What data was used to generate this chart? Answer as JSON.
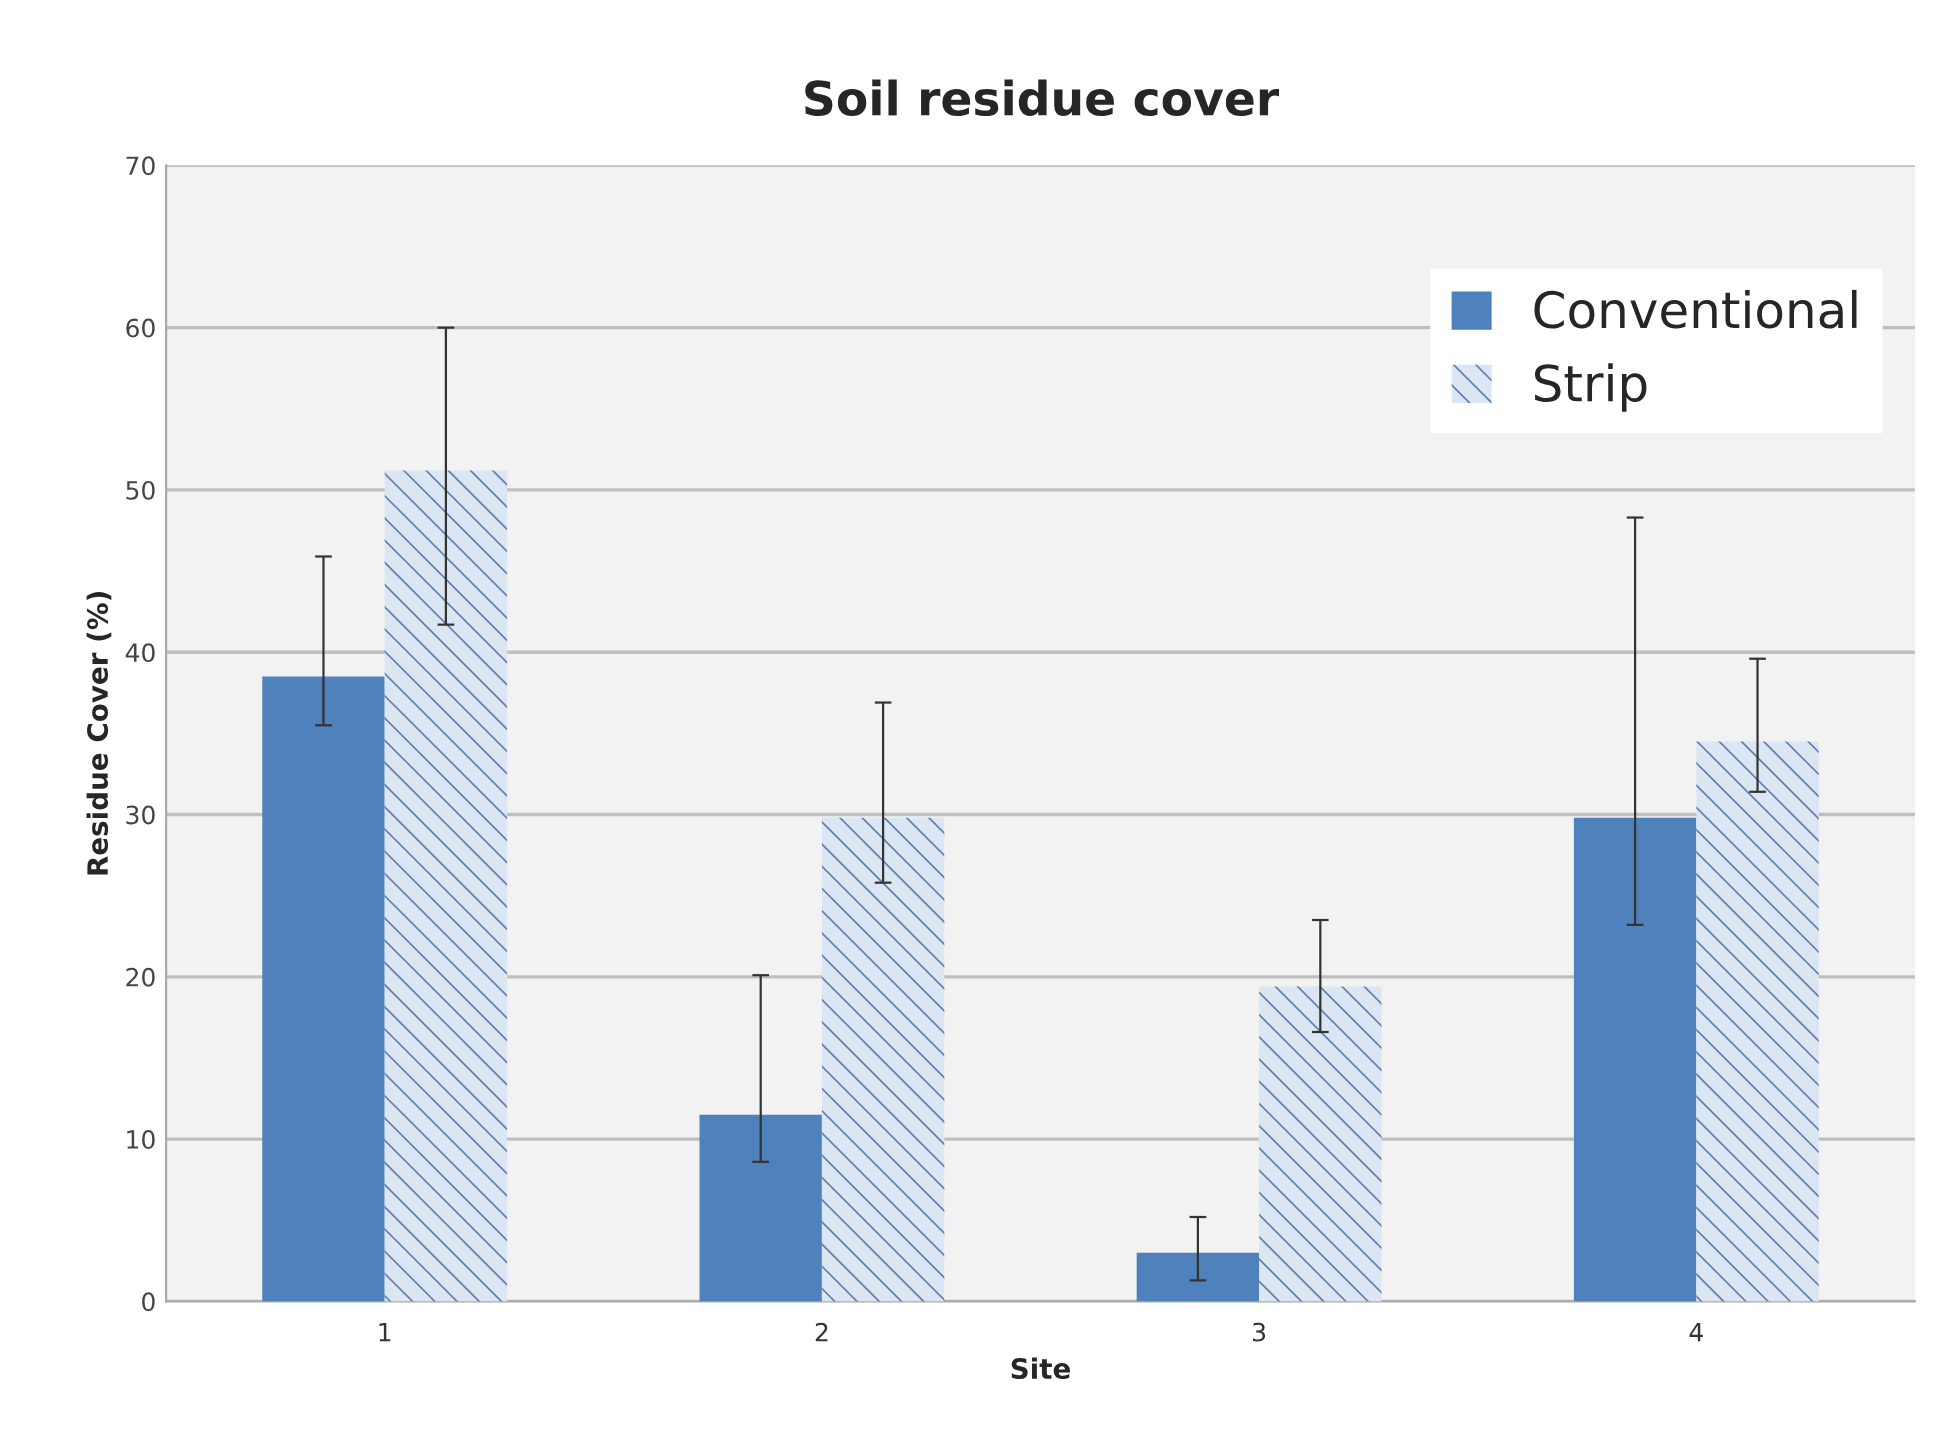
{
  "chart_data": {
    "type": "bar",
    "title": "Soil residue cover",
    "xlabel": "Site",
    "ylabel": "Residue Cover (%)",
    "categories": [
      "1",
      "2",
      "3",
      "4"
    ],
    "series": [
      {
        "name": "Conventional",
        "color": "#4f81bd",
        "values": [
          38.5,
          11.5,
          3.0,
          29.8
        ],
        "errors": [
          [
            35.5,
            45.9
          ],
          [
            8.6,
            20.1
          ],
          [
            1.3,
            5.2
          ],
          [
            23.2,
            48.3
          ]
        ]
      },
      {
        "name": "Strip",
        "color": "#dce6f2",
        "values": [
          51.2,
          29.8,
          19.4,
          34.5
        ],
        "errors": [
          [
            41.7,
            60.0
          ],
          [
            25.8,
            36.9
          ],
          [
            16.6,
            23.5
          ],
          [
            31.4,
            39.6
          ]
        ]
      }
    ],
    "ylim": [
      0,
      70
    ],
    "yticks": [
      0,
      10,
      20,
      30,
      40,
      50,
      60,
      70
    ],
    "grid": "y",
    "legend": "top right"
  }
}
